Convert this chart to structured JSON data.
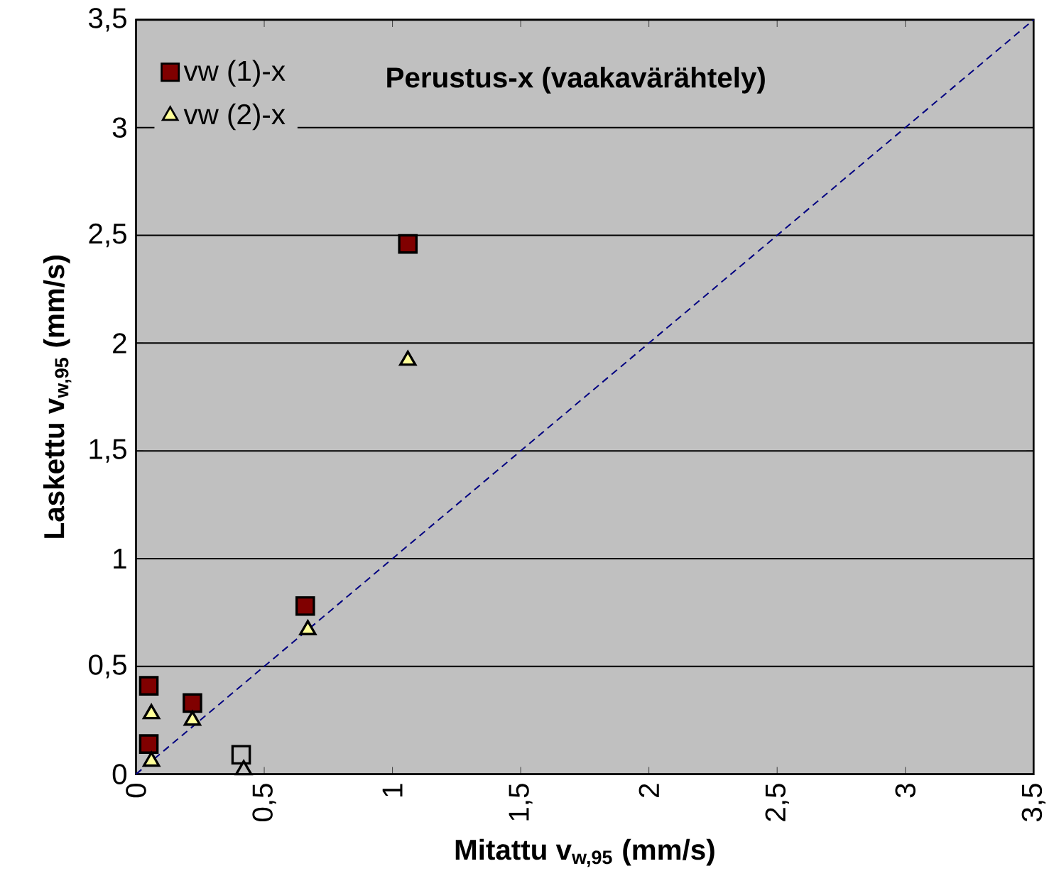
{
  "chart_data": {
    "type": "scatter",
    "title": "Perustus-x (vaakavärähtely)",
    "xlabel": "Mitattu  v$_{w,95}$ (mm/s)",
    "ylabel": "Laskettu  v$_{w,95}$ (mm/s)",
    "xlim": [
      0,
      3.5
    ],
    "ylim": [
      0,
      3.5
    ],
    "xticks": [
      0,
      {
        "value": 0.5,
        "label": "0,5"
      },
      1,
      {
        "value": 1.5,
        "label": "1,5"
      },
      2,
      {
        "value": 2.5,
        "label": "2,5"
      },
      3,
      {
        "value": 3.5,
        "label": "3,5"
      }
    ],
    "yticks": [
      0,
      {
        "value": 0.5,
        "label": "0,5"
      },
      1,
      {
        "value": 1.5,
        "label": "1,5"
      },
      2,
      {
        "value": 2.5,
        "label": "2,5"
      },
      3,
      {
        "value": 3.5,
        "label": "3,5"
      }
    ],
    "grid": "y",
    "legend": "top left",
    "series": [
      {
        "name": "vw (1)-x",
        "marker": "square",
        "color": "#800000",
        "x": [
          0.05,
          0.05,
          0.22,
          0.41,
          0.66,
          1.06
        ],
        "values": [
          0.41,
          0.14,
          0.33,
          0.09,
          0.78,
          2.46
        ],
        "colors": [
          "#800000",
          "#800000",
          "#800000",
          "#c0c0c0",
          "#800000",
          "#800000"
        ]
      },
      {
        "name": "vw (2)-x",
        "marker": "triangle",
        "color": "#ffff99",
        "x": [
          0.06,
          0.06,
          0.22,
          0.42,
          0.67,
          1.06
        ],
        "values": [
          0.28,
          0.06,
          0.25,
          0.02,
          0.67,
          1.92
        ],
        "colors": [
          "#ffff99",
          "#ffff99",
          "#ffff99",
          "#c0c0c0",
          "#ffff99",
          "#ffff99"
        ]
      },
      {
        "type": "line",
        "marker": "none",
        "line_style": "dashed",
        "color": "#000080",
        "x": [
          0,
          3.5
        ],
        "values": [
          0,
          3.5
        ]
      }
    ]
  }
}
